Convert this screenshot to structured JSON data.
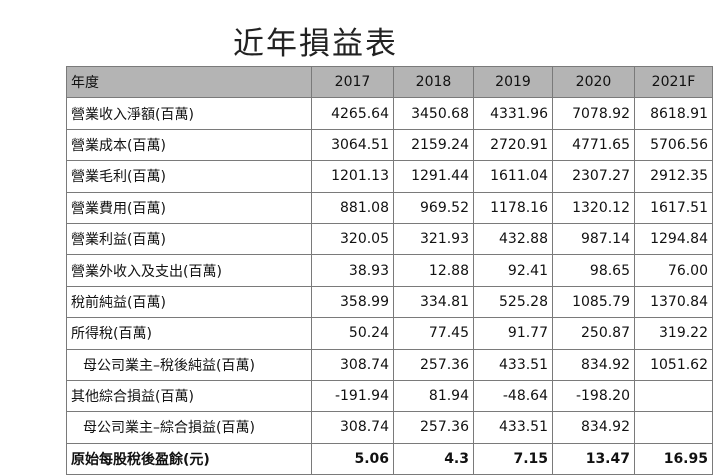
{
  "title": "近年損益表",
  "table": {
    "header_label": "年度",
    "years": [
      "2017",
      "2018",
      "2019",
      "2020",
      "2021F"
    ],
    "rows": [
      {
        "label": "營業收入淨額(百萬)",
        "values": [
          "4265.64",
          "3450.68",
          "4331.96",
          "7078.92",
          "8618.91"
        ]
      },
      {
        "label": "營業成本(百萬)",
        "values": [
          "3064.51",
          "2159.24",
          "2720.91",
          "4771.65",
          "5706.56"
        ]
      },
      {
        "label": "營業毛利(百萬)",
        "values": [
          "1201.13",
          "1291.44",
          "1611.04",
          "2307.27",
          "2912.35"
        ]
      },
      {
        "label": "營業費用(百萬)",
        "values": [
          "881.08",
          "969.52",
          "1178.16",
          "1320.12",
          "1617.51"
        ]
      },
      {
        "label": "營業利益(百萬)",
        "values": [
          "320.05",
          "321.93",
          "432.88",
          "987.14",
          "1294.84"
        ]
      },
      {
        "label": "營業外收入及支出(百萬)",
        "values": [
          "38.93",
          "12.88",
          "92.41",
          "98.65",
          "76.00"
        ]
      },
      {
        "label": "稅前純益(百萬)",
        "values": [
          "358.99",
          "334.81",
          "525.28",
          "1085.79",
          "1370.84"
        ]
      },
      {
        "label": "所得稅(百萬)",
        "values": [
          "50.24",
          "77.45",
          "91.77",
          "250.87",
          "319.22"
        ]
      },
      {
        "label": "母公司業主–稅後純益(百萬)",
        "values": [
          "308.74",
          "257.36",
          "433.51",
          "834.92",
          "1051.62"
        ]
      },
      {
        "label": "其他綜合損益(百萬)",
        "values": [
          "-191.94",
          "81.94",
          "-48.64",
          "-198.20",
          ""
        ]
      },
      {
        "label": "母公司業主–綜合損益(百萬)",
        "values": [
          "308.74",
          "257.36",
          "433.51",
          "834.92",
          ""
        ]
      },
      {
        "label": "原始每股稅後盈餘(元)",
        "values": [
          "5.06",
          "4.3",
          "7.15",
          "13.47",
          "16.95"
        ]
      }
    ]
  },
  "colors": {
    "header_bg": "#b4b4b4",
    "border": "#7a7a7a"
  }
}
